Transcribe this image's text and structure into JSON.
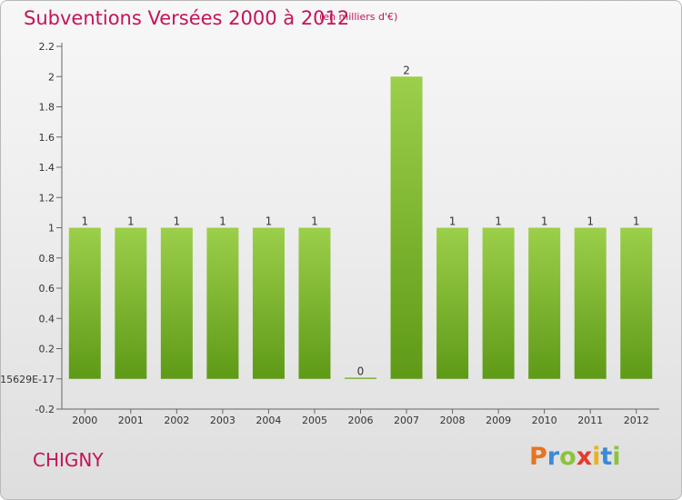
{
  "header": {
    "title": "Subventions Versées 2000 à 2012",
    "unit_note": "(en milliers d'€)"
  },
  "footer": {
    "town": "CHIGNY",
    "logo_letters": [
      "P",
      "r",
      "o",
      "x",
      "i",
      "t",
      "i"
    ]
  },
  "chart_data": {
    "type": "bar",
    "title": "Subventions Versées 2000 à 2012",
    "subtitle": "(en milliers d'€)",
    "xlabel": "",
    "ylabel": "",
    "categories": [
      "2000",
      "2001",
      "2002",
      "2003",
      "2004",
      "2005",
      "2006",
      "2007",
      "2008",
      "2009",
      "2010",
      "2011",
      "2012"
    ],
    "values": [
      1,
      1,
      1,
      1,
      1,
      1,
      0,
      2,
      1,
      1,
      1,
      1,
      1
    ],
    "data_labels": [
      "1",
      "1",
      "1",
      "1",
      "1",
      "1",
      "0",
      "2",
      "1",
      "1",
      "1",
      "1",
      "1"
    ],
    "ylim": [
      -0.2,
      2.2
    ],
    "yticks": [
      {
        "value": -0.2,
        "label": "-0.2"
      },
      {
        "value": 0,
        "label": "-15629E-17"
      },
      {
        "value": 0.2,
        "label": "0.2"
      },
      {
        "value": 0.4,
        "label": "0.4"
      },
      {
        "value": 0.6,
        "label": "0.6"
      },
      {
        "value": 0.8,
        "label": "0.8"
      },
      {
        "value": 1,
        "label": "1"
      },
      {
        "value": 1.2,
        "label": "1.2"
      },
      {
        "value": 1.4,
        "label": "1.4"
      },
      {
        "value": 1.6,
        "label": "1.6"
      },
      {
        "value": 1.8,
        "label": "1.8"
      },
      {
        "value": 2,
        "label": "2"
      },
      {
        "value": 2.2,
        "label": "2.2"
      }
    ],
    "grid": false,
    "colors": {
      "bar_light": "#9ccf4a",
      "bar_dark": "#5e9a17",
      "axis": "#666666"
    }
  }
}
